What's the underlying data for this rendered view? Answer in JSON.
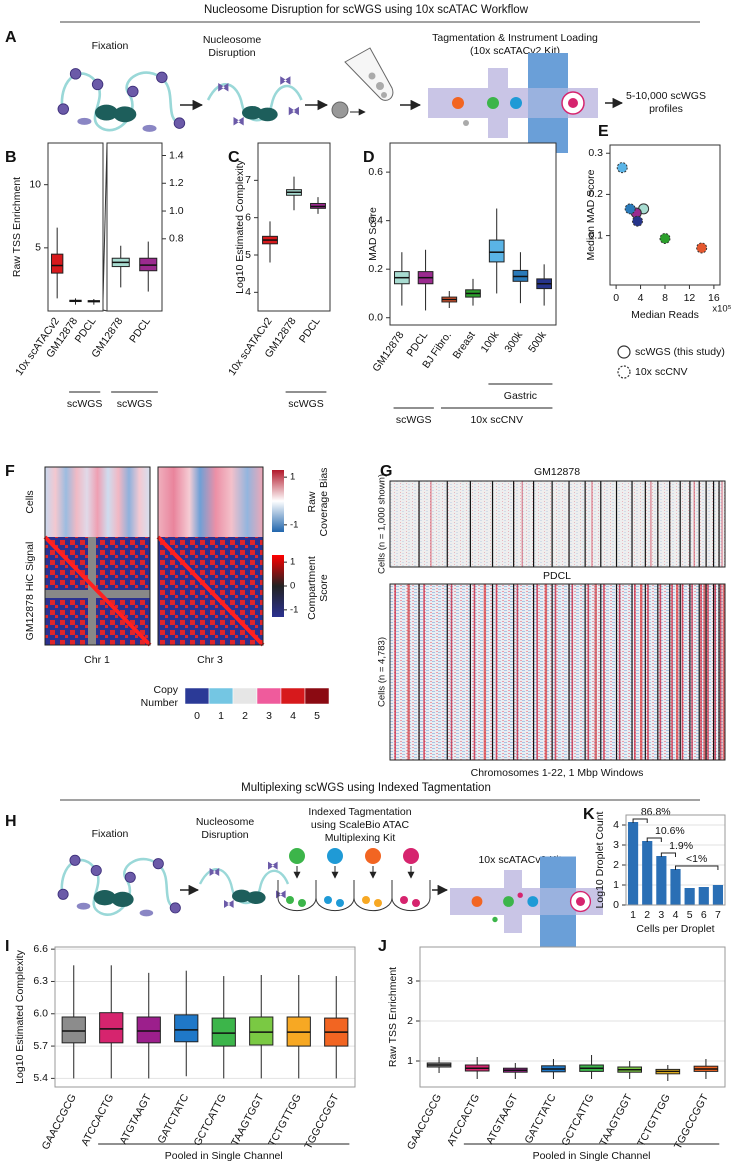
{
  "sections": [
    "Nucleosome Disruption for scWGS using 10x scATAC Workflow",
    "Multiplexing scWGS using Indexed Tagmentation"
  ],
  "diagram_a": {
    "panel": "A",
    "steps": [
      [
        "Fixation"
      ],
      [
        "Nucleosome",
        "Disruption"
      ],
      [
        "Tagmentation & Instrument Loading",
        "(10x scATACv2 Kit)"
      ]
    ],
    "output": [
      "5-10,000 scWGS",
      "profiles"
    ]
  },
  "heatmap_f": {
    "panel": "F",
    "row_labels": [
      "Cells",
      "GM12878 HiC Signal"
    ],
    "columns": [
      "Chr 1",
      "Chr 3"
    ],
    "colorbars": [
      {
        "title": [
          "Raw",
          "Coverage Bias"
        ],
        "ticks": [
          1,
          -1
        ],
        "lim": [
          -1.3,
          1.3
        ]
      },
      {
        "title": [
          "Compartment",
          "Score"
        ],
        "ticks": [
          1,
          0,
          -1
        ],
        "lim": [
          -1.3,
          1.3
        ]
      }
    ]
  },
  "heatmap_g": {
    "panel": "G",
    "titles": [
      "GM12878",
      "PDCL"
    ],
    "row_labels": [
      "Cells (n = 1,000 shown)",
      "Cells (n = 4,783)"
    ],
    "xlabel": "Chromosomes 1-22, 1 Mbp Windows"
  },
  "copy_number": {
    "title": [
      "Copy",
      "Number"
    ],
    "levels": [
      0,
      1,
      2,
      3,
      4,
      5
    ],
    "colors": [
      "#2b3a97",
      "#74c6e3",
      "#e6e6e6",
      "#ef5b9c",
      "#d7191c",
      "#8b0a12"
    ]
  },
  "diagram_h": {
    "panel": "H",
    "steps": [
      [
        "Fixation"
      ],
      [
        "Nucleosome",
        "Disruption"
      ],
      [
        "Indexed Tagmentation",
        "using ScaleBio ATAC",
        "Multiplexing Kit"
      ],
      [
        "10x scATACv2 Kit"
      ]
    ]
  },
  "chart_data": [
    {
      "type": "box",
      "panel": "B",
      "ylabel": "Raw TSS Enrichment",
      "categories": [
        "10x scATACv2",
        "GM12878",
        "PDCL"
      ],
      "colors": [
        "#d7191c",
        "#a8dcd1",
        "#9b2a8f"
      ],
      "boxes": [
        {
          "low": 1.0,
          "q1": 3.0,
          "median": 3.6,
          "q3": 4.5,
          "high": 6.6
        },
        {
          "low": 0.5,
          "q1": 0.75,
          "median": 0.8,
          "q3": 0.85,
          "high": 1.0
        },
        {
          "low": 0.5,
          "q1": 0.72,
          "median": 0.78,
          "q3": 0.82,
          "high": 0.95
        }
      ],
      "ylim": [
        0,
        13.3
      ],
      "yticks": [
        5,
        10
      ],
      "grid": false,
      "groups": [
        {
          "label": "scWGS",
          "categories": [
            "GM12878",
            "PDCL"
          ]
        }
      ]
    },
    {
      "type": "box",
      "categories": [
        "GM12878",
        "PDCL"
      ],
      "colors": [
        "#a8dcd1",
        "#9b2a8f"
      ],
      "boxes": [
        {
          "low": 0.45,
          "q1": 0.6,
          "median": 0.63,
          "q3": 0.66,
          "high": 0.75
        },
        {
          "low": 0.42,
          "q1": 0.57,
          "median": 0.61,
          "q3": 0.66,
          "high": 0.78
        }
      ],
      "ylim": [
        0.28,
        1.49
      ],
      "yticks": [
        0.8,
        {
          "value": 1.0,
          "label": "1.0"
        },
        1.2,
        1.4
      ],
      "grid": false,
      "groups": [
        {
          "label": "scWGS",
          "categories": [
            "GM12878",
            "PDCL"
          ]
        }
      ]
    },
    {
      "type": "box",
      "panel": "C",
      "ylabel": "Log10 Estimated Complexity",
      "categories": [
        "10x scATACv2",
        "GM12878",
        "PDCL"
      ],
      "colors": [
        "#d7191c",
        "#a8dcd1",
        "#9b2a8f"
      ],
      "boxes": [
        {
          "low": 4.8,
          "q1": 5.3,
          "median": 5.4,
          "q3": 5.5,
          "high": 5.9
        },
        {
          "low": 6.2,
          "q1": 6.6,
          "median": 6.68,
          "q3": 6.75,
          "high": 7.1
        },
        {
          "low": 6.1,
          "q1": 6.25,
          "median": 6.3,
          "q3": 6.38,
          "high": 6.55
        }
      ],
      "ylim": [
        3.5,
        8.0
      ],
      "yticks": [
        4,
        5,
        6,
        7
      ],
      "grid": false,
      "groups": [
        {
          "label": "scWGS",
          "categories": [
            "GM12878",
            "PDCL"
          ]
        }
      ]
    },
    {
      "type": "box",
      "panel": "D",
      "ylabel": "MAD Score",
      "categories": [
        "GM12878",
        "PDCL",
        "BJ Fibro.",
        "Breast",
        "100k",
        "300k",
        "500k"
      ],
      "colors": [
        "#a8dcd1",
        "#9b2a8f",
        "#e4572e",
        "#2ca02c",
        "#5ab4e6",
        "#2a7ab9",
        "#26348b"
      ],
      "boxes": [
        {
          "low": 0.05,
          "q1": 0.14,
          "median": 0.165,
          "q3": 0.19,
          "high": 0.27
        },
        {
          "low": 0.03,
          "q1": 0.14,
          "median": 0.165,
          "q3": 0.19,
          "high": 0.28
        },
        {
          "low": 0.04,
          "q1": 0.065,
          "median": 0.075,
          "q3": 0.085,
          "high": 0.11
        },
        {
          "low": 0.05,
          "q1": 0.085,
          "median": 0.1,
          "q3": 0.115,
          "high": 0.16
        },
        {
          "low": 0.1,
          "q1": 0.23,
          "median": 0.27,
          "q3": 0.32,
          "high": 0.45
        },
        {
          "low": 0.06,
          "q1": 0.15,
          "median": 0.17,
          "q3": 0.195,
          "high": 0.27
        },
        {
          "low": 0.05,
          "q1": 0.12,
          "median": 0.14,
          "q3": 0.16,
          "high": 0.22
        }
      ],
      "ylim": [
        -0.03,
        0.72
      ],
      "yticks": [
        {
          "value": 0,
          "label": "0.0"
        },
        0.2,
        0.4,
        0.6
      ],
      "grid": false,
      "groups": [
        {
          "label": "scWGS",
          "categories": [
            "GM12878",
            "PDCL"
          ]
        },
        {
          "label": "10x scCNV",
          "categories": [
            "BJ Fibro.",
            "Breast",
            "100k",
            "300k",
            "500k"
          ]
        },
        {
          "label": "Gastric",
          "categories": [
            "100k",
            "300k",
            "500k"
          ]
        }
      ]
    },
    {
      "type": "scatter",
      "panel": "E",
      "ylabel": "Median MAD Score",
      "xlabel": "Median Reads",
      "x_multiplier": "x10⁵",
      "series": [
        {
          "name": "scWGS (this study)",
          "dash": false,
          "x": [
            4.5,
            3.3
          ],
          "values": [
            0.165,
            0.155
          ],
          "colors": [
            "#a8dcd1",
            "#9b2a8f"
          ]
        },
        {
          "name": "10x scCNV",
          "dash": true,
          "x": [
            1,
            2.3,
            3.5,
            8,
            14
          ],
          "values": [
            0.265,
            0.165,
            0.135,
            0.093,
            0.07
          ],
          "colors": [
            "#5ab4e6",
            "#2a7ab9",
            "#26348b",
            "#2ca02c",
            "#e4572e"
          ]
        }
      ],
      "xlim": [
        -1,
        17
      ],
      "xticks": [
        0,
        4,
        8,
        12,
        16
      ],
      "ylim": [
        -0.02,
        0.32
      ],
      "yticks": [
        0.1,
        0.2,
        0.3
      ],
      "grid": false
    },
    {
      "type": "bar",
      "panel": "K",
      "ylabel": "Log10 Droplet Count",
      "xlabel": "Cells per Droplet",
      "categories": [
        "1",
        "2",
        "3",
        "4",
        "5",
        "6",
        "7"
      ],
      "values": [
        4.15,
        3.2,
        2.45,
        1.8,
        0.85,
        0.9,
        1.0
      ],
      "color": "#2a6fb5",
      "ylim": [
        0,
        4.5
      ],
      "yticks": [
        0,
        1,
        2,
        3,
        4
      ],
      "grid": true,
      "annotations": [
        {
          "label": "86.8%",
          "categories": [
            "1",
            "2"
          ]
        },
        {
          "label": "10.6%",
          "categories": [
            "2",
            "3"
          ]
        },
        {
          "label": "1.9%",
          "categories": [
            "3",
            "4"
          ]
        },
        {
          "label": "<1%",
          "categories": [
            "4",
            "5",
            "6",
            "7"
          ]
        }
      ]
    },
    {
      "type": "box",
      "panel": "I",
      "ylabel": "Log10 Estimated Complexity",
      "categories": [
        "GAACCGCG",
        "ATCCACTG",
        "ATGTAAGT",
        "GATCTATC",
        "GCTCATTG",
        "TAAGTGGT",
        "TCTGTTGG",
        "TGGCCGGT"
      ],
      "colors": [
        "#8c8c8c",
        "#d6246e",
        "#9c1f8c",
        "#1f78c8",
        "#3cb54a",
        "#7ac943",
        "#f7a823",
        "#f26522"
      ],
      "boxes": [
        {
          "low": 5.4,
          "q1": 5.73,
          "median": 5.84,
          "q3": 5.97,
          "high": 6.45
        },
        {
          "low": 5.4,
          "q1": 5.73,
          "median": 5.86,
          "q3": 6.01,
          "high": 6.45
        },
        {
          "low": 5.4,
          "q1": 5.73,
          "median": 5.84,
          "q3": 5.97,
          "high": 6.38
        },
        {
          "low": 5.42,
          "q1": 5.74,
          "median": 5.85,
          "q3": 5.99,
          "high": 6.4
        },
        {
          "low": 5.4,
          "q1": 5.7,
          "median": 5.82,
          "q3": 5.96,
          "high": 6.35
        },
        {
          "low": 5.4,
          "q1": 5.71,
          "median": 5.83,
          "q3": 5.97,
          "high": 6.36
        },
        {
          "low": 5.4,
          "q1": 5.7,
          "median": 5.83,
          "q3": 5.97,
          "high": 6.36
        },
        {
          "low": 5.4,
          "q1": 5.7,
          "median": 5.83,
          "q3": 5.96,
          "high": 6.35
        }
      ],
      "ylim": [
        5.32,
        6.62
      ],
      "yticks": [
        5.4,
        5.7,
        {
          "value": 6.0,
          "label": "6.0"
        },
        6.3,
        6.6
      ],
      "grid": true,
      "groups": [
        {
          "label": "Pooled in Single Channel",
          "categories": [
            "ATCCACTG",
            "ATGTAAGT",
            "GATCTATC",
            "GCTCATTG",
            "TAAGTGGT",
            "TCTGTTGG",
            "TGGCCGGT"
          ]
        }
      ]
    },
    {
      "type": "box",
      "panel": "J",
      "ylabel": "Raw TSS Enrichment",
      "categories": [
        "GAACCGCG",
        "ATCCACTG",
        "ATGTAAGT",
        "GATCTATC",
        "GCTCATTG",
        "TAAGTGGT",
        "TCTGTTGG",
        "TGGCCGGT"
      ],
      "colors": [
        "#8c8c8c",
        "#d6246e",
        "#9c1f8c",
        "#1f78c8",
        "#3cb54a",
        "#7ac943",
        "#f7c023",
        "#f26522"
      ],
      "boxes": [
        {
          "low": 0.7,
          "q1": 0.85,
          "median": 0.9,
          "q3": 0.95,
          "high": 1.1
        },
        {
          "low": 0.55,
          "q1": 0.75,
          "median": 0.82,
          "q3": 0.9,
          "high": 1.1
        },
        {
          "low": 0.55,
          "q1": 0.72,
          "median": 0.77,
          "q3": 0.82,
          "high": 0.95
        },
        {
          "low": 0.55,
          "q1": 0.73,
          "median": 0.8,
          "q3": 0.88,
          "high": 1.05
        },
        {
          "low": 0.55,
          "q1": 0.74,
          "median": 0.82,
          "q3": 0.9,
          "high": 1.15
        },
        {
          "low": 0.55,
          "q1": 0.72,
          "median": 0.78,
          "q3": 0.85,
          "high": 1.0
        },
        {
          "low": 0.5,
          "q1": 0.68,
          "median": 0.74,
          "q3": 0.79,
          "high": 0.9
        },
        {
          "low": 0.55,
          "q1": 0.74,
          "median": 0.8,
          "q3": 0.87,
          "high": 1.05
        }
      ],
      "ylim": [
        0.35,
        3.85
      ],
      "yticks": [
        1,
        2,
        3
      ],
      "grid": true,
      "groups": [
        {
          "label": "Pooled in Single Channel",
          "categories": [
            "ATCCACTG",
            "ATGTAAGT",
            "GATCTATC",
            "GCTCATTG",
            "TAAGTGGT",
            "TCTGTTGG",
            "TGGCCGGT"
          ]
        }
      ]
    }
  ]
}
